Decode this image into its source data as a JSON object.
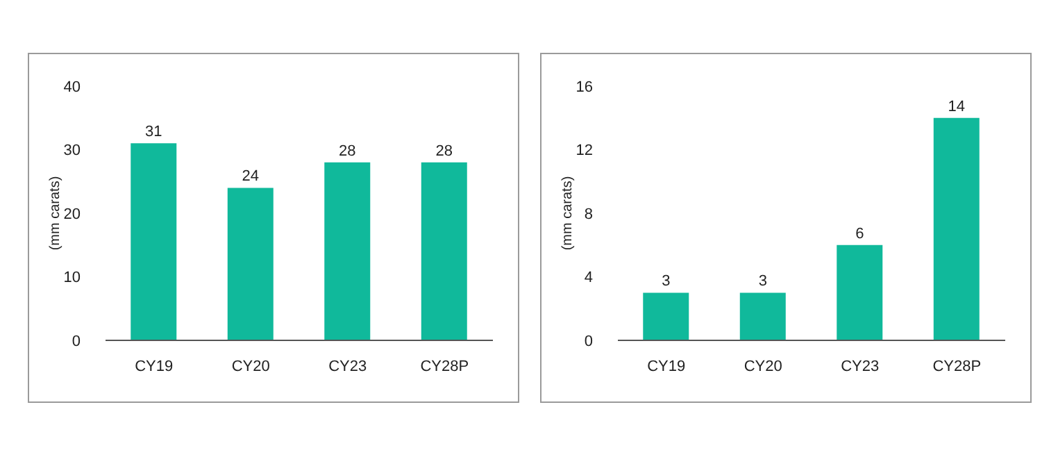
{
  "chart_data": [
    {
      "type": "bar",
      "ylabel": "(mm carats)",
      "categories": [
        "CY19",
        "CY20",
        "CY23",
        "CY28P"
      ],
      "values": [
        31,
        24,
        28,
        28
      ],
      "color": "#10b99b",
      "ylim": [
        0,
        40
      ],
      "yticks": [
        0,
        10,
        20,
        30,
        40
      ],
      "grid": false,
      "data_labels": true
    },
    {
      "type": "bar",
      "ylabel": "(mm carats)",
      "categories": [
        "CY19",
        "CY20",
        "CY23",
        "CY28P"
      ],
      "values": [
        3,
        3,
        6,
        14
      ],
      "color": "#10b99b",
      "ylim": [
        0,
        16
      ],
      "yticks": [
        0,
        4,
        8,
        12,
        16
      ],
      "grid": false,
      "data_labels": true
    }
  ]
}
